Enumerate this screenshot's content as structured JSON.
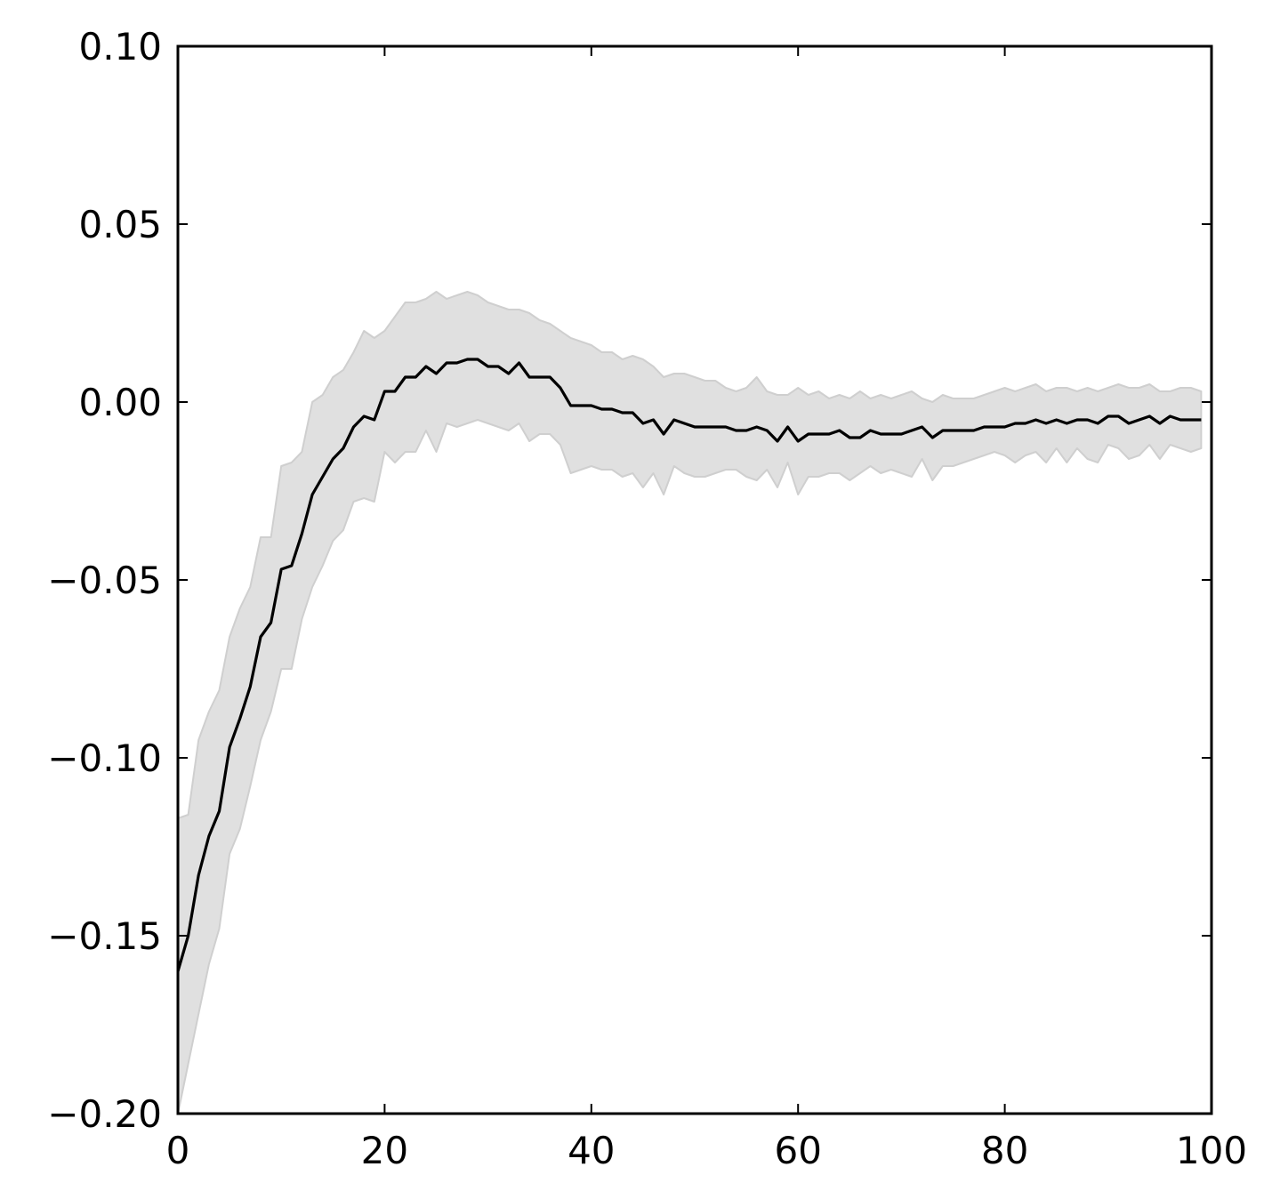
{
  "chart_data": {
    "type": "line",
    "title": "",
    "xlabel": "",
    "ylabel": "",
    "xlim": [
      0,
      100
    ],
    "ylim": [
      -0.2,
      0.1
    ],
    "grid": false,
    "x_ticks": [
      0,
      20,
      40,
      60,
      80,
      100
    ],
    "y_ticks": [
      -0.2,
      -0.15,
      -0.1,
      -0.05,
      0.0,
      0.05,
      0.1
    ],
    "x_tick_labels": [
      "0",
      "20",
      "40",
      "60",
      "80",
      "100"
    ],
    "y_tick_labels": [
      "−0.20",
      "−0.15",
      "−0.10",
      "−0.05",
      "0.00",
      "0.05",
      "0.10"
    ],
    "colors": {
      "line": "#000000",
      "band": "#e0e0e0",
      "band_edge": "#cfcfcf"
    },
    "series": [
      {
        "x": [
          0,
          1,
          2,
          3,
          4,
          5,
          6,
          7,
          8,
          9,
          10,
          11,
          12,
          13,
          14,
          15,
          16,
          17,
          18,
          19,
          20,
          21,
          22,
          23,
          24,
          25,
          26,
          27,
          28,
          29,
          30,
          31,
          32,
          33,
          34,
          35,
          36,
          37,
          38,
          39,
          40,
          41,
          42,
          43,
          44,
          45,
          46,
          47,
          48,
          49,
          50,
          51,
          52,
          53,
          54,
          55,
          56,
          57,
          58,
          59,
          60,
          61,
          62,
          63,
          64,
          65,
          66,
          67,
          68,
          69,
          70,
          71,
          72,
          73,
          74,
          75,
          76,
          77,
          78,
          79,
          80,
          81,
          82,
          83,
          84,
          85,
          86,
          87,
          88,
          89,
          90,
          91,
          92,
          93,
          94,
          95,
          96,
          97,
          98,
          99
        ],
        "mean": [
          -0.16,
          -0.15,
          -0.133,
          -0.122,
          -0.115,
          -0.097,
          -0.089,
          -0.08,
          -0.066,
          -0.062,
          -0.047,
          -0.046,
          -0.037,
          -0.026,
          -0.021,
          -0.016,
          -0.013,
          -0.007,
          -0.004,
          -0.005,
          0.003,
          0.003,
          0.007,
          0.007,
          0.01,
          0.008,
          0.011,
          0.011,
          0.012,
          0.012,
          0.01,
          0.01,
          0.008,
          0.011,
          0.007,
          0.007,
          0.007,
          0.004,
          -0.001,
          -0.001,
          -0.001,
          -0.002,
          -0.002,
          -0.003,
          -0.003,
          -0.006,
          -0.005,
          -0.009,
          -0.005,
          -0.006,
          -0.007,
          -0.007,
          -0.007,
          -0.007,
          -0.008,
          -0.008,
          -0.007,
          -0.008,
          -0.011,
          -0.007,
          -0.011,
          -0.009,
          -0.009,
          -0.009,
          -0.008,
          -0.01,
          -0.01,
          -0.008,
          -0.009,
          -0.009,
          -0.009,
          -0.008,
          -0.007,
          -0.01,
          -0.008,
          -0.008,
          -0.008,
          -0.008,
          -0.007,
          -0.007,
          -0.007,
          -0.006,
          -0.006,
          -0.005,
          -0.006,
          -0.005,
          -0.006,
          -0.005,
          -0.005,
          -0.006,
          -0.004,
          -0.004,
          -0.006,
          -0.005,
          -0.004,
          -0.006,
          -0.004,
          -0.005,
          -0.005,
          -0.005
        ],
        "upper": [
          -0.117,
          -0.116,
          -0.095,
          -0.087,
          -0.081,
          -0.066,
          -0.058,
          -0.052,
          -0.038,
          -0.038,
          -0.018,
          -0.017,
          -0.014,
          0.0,
          0.002,
          0.007,
          0.009,
          0.014,
          0.02,
          0.018,
          0.02,
          0.024,
          0.028,
          0.028,
          0.029,
          0.031,
          0.029,
          0.03,
          0.031,
          0.03,
          0.028,
          0.027,
          0.026,
          0.026,
          0.025,
          0.023,
          0.022,
          0.02,
          0.018,
          0.017,
          0.016,
          0.014,
          0.014,
          0.012,
          0.013,
          0.012,
          0.01,
          0.007,
          0.008,
          0.008,
          0.007,
          0.006,
          0.006,
          0.004,
          0.003,
          0.004,
          0.007,
          0.003,
          0.002,
          0.002,
          0.004,
          0.002,
          0.003,
          0.001,
          0.002,
          0.001,
          0.003,
          0.001,
          0.002,
          0.001,
          0.002,
          0.003,
          0.001,
          0.0,
          0.002,
          0.001,
          0.001,
          0.001,
          0.002,
          0.003,
          0.004,
          0.003,
          0.004,
          0.005,
          0.003,
          0.004,
          0.004,
          0.003,
          0.004,
          0.003,
          0.004,
          0.005,
          0.004,
          0.004,
          0.005,
          0.003,
          0.003,
          0.004,
          0.004,
          0.003
        ],
        "lower": [
          -0.2,
          -0.186,
          -0.172,
          -0.158,
          -0.148,
          -0.127,
          -0.12,
          -0.108,
          -0.095,
          -0.087,
          -0.075,
          -0.075,
          -0.061,
          -0.052,
          -0.046,
          -0.039,
          -0.036,
          -0.028,
          -0.027,
          -0.028,
          -0.014,
          -0.017,
          -0.014,
          -0.014,
          -0.008,
          -0.014,
          -0.006,
          -0.007,
          -0.006,
          -0.005,
          -0.006,
          -0.007,
          -0.008,
          -0.006,
          -0.011,
          -0.009,
          -0.009,
          -0.012,
          -0.02,
          -0.019,
          -0.018,
          -0.019,
          -0.019,
          -0.021,
          -0.02,
          -0.024,
          -0.02,
          -0.026,
          -0.018,
          -0.02,
          -0.021,
          -0.021,
          -0.02,
          -0.019,
          -0.019,
          -0.021,
          -0.022,
          -0.019,
          -0.024,
          -0.017,
          -0.026,
          -0.021,
          -0.021,
          -0.02,
          -0.02,
          -0.022,
          -0.02,
          -0.018,
          -0.02,
          -0.019,
          -0.02,
          -0.021,
          -0.016,
          -0.022,
          -0.018,
          -0.018,
          -0.017,
          -0.016,
          -0.015,
          -0.014,
          -0.015,
          -0.017,
          -0.015,
          -0.014,
          -0.017,
          -0.013,
          -0.017,
          -0.013,
          -0.016,
          -0.017,
          -0.012,
          -0.013,
          -0.016,
          -0.015,
          -0.012,
          -0.016,
          -0.012,
          -0.013,
          -0.014,
          -0.013
        ]
      }
    ]
  }
}
